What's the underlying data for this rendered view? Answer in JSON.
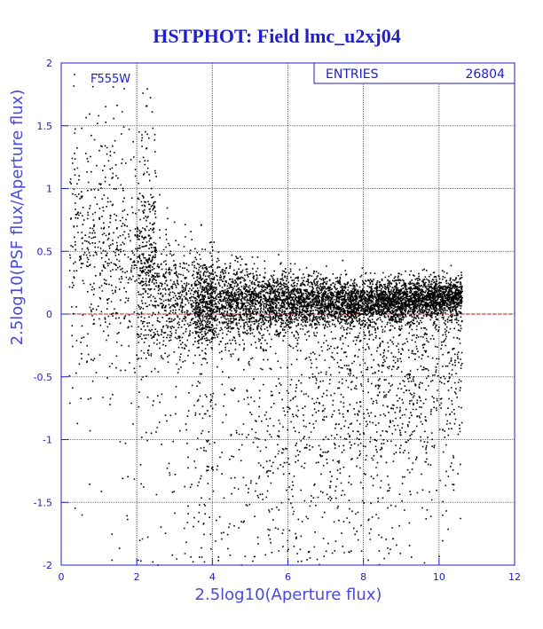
{
  "chart_data": {
    "type": "scatter",
    "title": "HSTPHOT: Field lmc_u2xj04",
    "xlabel": "2.5log10(Aperture flux)",
    "ylabel": "2.5log10(PSF flux/Aperture flux)",
    "annotation": "F555W",
    "xlim": [
      0,
      12
    ],
    "ylim": [
      -2,
      2
    ],
    "x_ticks": [
      "0",
      "2",
      "4",
      "6",
      "8",
      "10",
      "12"
    ],
    "y_ticks": [
      "2",
      "1.5",
      "1",
      "0.5",
      "0",
      "-0.5",
      "-1",
      "-1.5",
      "-2"
    ],
    "grid": true,
    "reference_line_y": 0,
    "stats": {
      "entries_label": "ENTRIES",
      "entries_value": "26804"
    },
    "series": [
      {
        "color": "#000000",
        "approx_trend": {
          "x": [
            1,
            2,
            3,
            4,
            5,
            6,
            7,
            8,
            9,
            10,
            10.6
          ],
          "y_center": [
            0.35,
            0.25,
            0.12,
            0.1,
            0.1,
            0.1,
            0.1,
            0.1,
            0.12,
            0.14,
            0.15
          ]
        }
      }
    ]
  },
  "colors": {
    "axis": "#1f1fd0",
    "grid": "#3a3ac8",
    "points": "#000000",
    "zero_line": "#d01010"
  }
}
